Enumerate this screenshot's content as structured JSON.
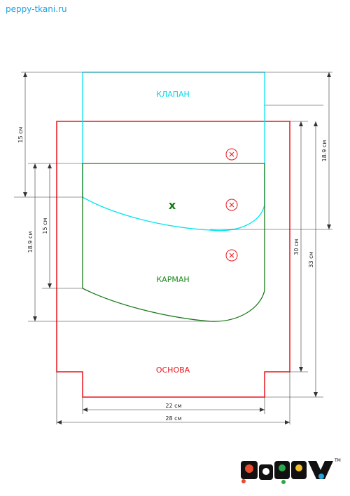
{
  "site": "peppy-tkani.ru",
  "pieces": {
    "flap": "КЛАПАН",
    "pocket": "КАРМАН",
    "base": "ОСНОВА"
  },
  "dimensions": {
    "width_inner": "22 см",
    "width_outer": "28 см",
    "left_flap": "15 см",
    "left_pocket_outer": "18.9 см",
    "left_pocket_inner": "15 см",
    "right_height_30": "30 см",
    "right_height_33": "33 см",
    "right_flap": "18.9 см"
  },
  "marks": {
    "cross": "x"
  },
  "logo": {
    "text": "PePPY",
    "tm": "TM"
  },
  "colors": {
    "flap": "#00e5ee",
    "pocket": "#1a7a1a",
    "base": "#e8141c",
    "dim": "#333333"
  }
}
